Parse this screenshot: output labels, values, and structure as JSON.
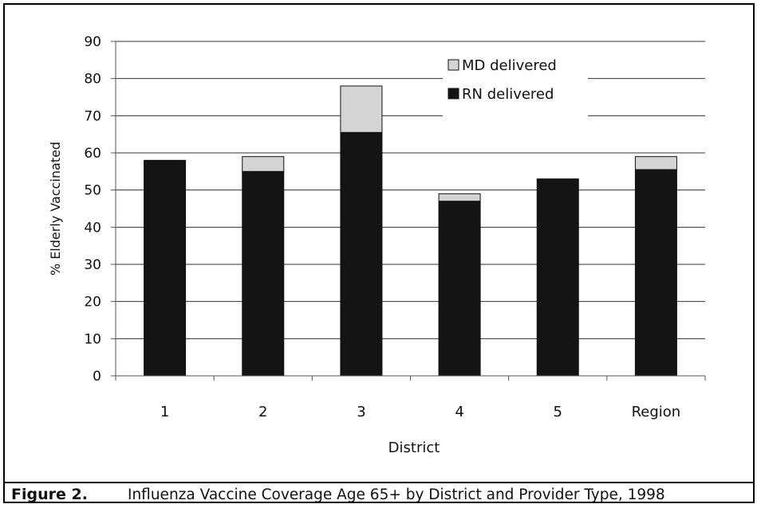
{
  "chart_data": {
    "type": "bar",
    "stacked": true,
    "categories": [
      "1",
      "2",
      "3",
      "4",
      "5",
      "Region"
    ],
    "series": [
      {
        "name": "RN delivered",
        "color": "#141414",
        "values": [
          58,
          55,
          65.5,
          47,
          53,
          55.5
        ]
      },
      {
        "name": "MD delivered",
        "color": "#d4d4d4",
        "values": [
          0,
          4,
          12.5,
          2,
          0,
          3.5
        ]
      }
    ],
    "xlabel": "District",
    "ylabel": "% Elderly Vaccinated",
    "ylim": [
      0,
      90
    ],
    "yticks": [
      0,
      10,
      20,
      30,
      40,
      50,
      60,
      70,
      80,
      90
    ],
    "grid": true,
    "legend_position": "top-right",
    "legend_order": [
      "MD delivered",
      "RN delivered"
    ]
  },
  "caption": {
    "label": "Figure 2.",
    "text": "Influenza Vaccine Coverage Age 65+ by District and Provider Type, 1998"
  }
}
